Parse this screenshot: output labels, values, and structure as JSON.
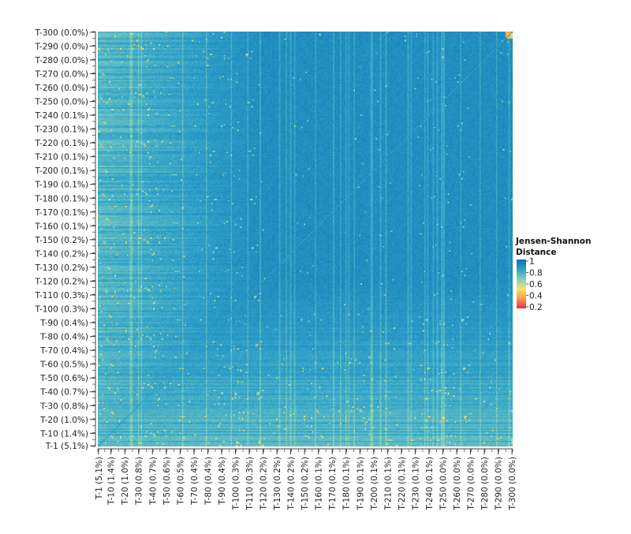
{
  "chart_data": {
    "type": "heatmap",
    "title": "",
    "xlabel": "",
    "ylabel": "",
    "n_topics": 300,
    "labeled_topics": [
      1,
      10,
      20,
      30,
      40,
      50,
      60,
      70,
      80,
      90,
      100,
      110,
      120,
      130,
      140,
      150,
      160,
      170,
      180,
      190,
      200,
      210,
      220,
      230,
      240,
      250,
      260,
      270,
      280,
      290,
      300
    ],
    "y_tick_labels": [
      "T-1 (5.1%)",
      "T-10 (1.4%)",
      "T-20 (1.0%)",
      "T-30 (0.8%)",
      "T-40 (0.7%)",
      "T-50 (0.6%)",
      "T-60 (0.5%)",
      "T-70 (0.4%)",
      "T-80 (0.4%)",
      "T-90 (0.4%)",
      "T-100 (0.3%)",
      "T-110 (0.3%)",
      "T-120 (0.2%)",
      "T-130 (0.2%)",
      "T-140 (0.2%)",
      "T-150 (0.2%)",
      "T-160 (0.1%)",
      "T-170 (0.1%)",
      "T-180 (0.1%)",
      "T-190 (0.1%)",
      "T-200 (0.1%)",
      "T-210 (0.1%)",
      "T-220 (0.1%)",
      "T-230 (0.1%)",
      "T-240 (0.1%)",
      "T-250 (0.0%)",
      "T-260 (0.0%)",
      "T-270 (0.0%)",
      "T-280 (0.0%)",
      "T-290 (0.0%)",
      "T-300 (0.0%)"
    ],
    "x_tick_labels": [
      "T-1 (5.1%)",
      "T-10 (1.4%)",
      "T-20 (1.0%)",
      "T-30 (0.8%)",
      "T-40 (0.7%)",
      "T-50 (0.6%)",
      "T-60 (0.5%)",
      "T-70 (0.4%)",
      "T-80 (0.4%)",
      "T-90 (0.4%)",
      "T-100 (0.3%)",
      "T-110 (0.3%)",
      "T-120 (0.2%)",
      "T-130 (0.2%)",
      "T-140 (0.2%)",
      "T-150 (0.2%)",
      "T-160 (0.1%)",
      "T-170 (0.1%)",
      "T-180 (0.1%)",
      "T-190 (0.1%)",
      "T-200 (0.1%)",
      "T-210 (0.1%)",
      "T-220 (0.1%)",
      "T-230 (0.1%)",
      "T-240 (0.1%)",
      "T-250 (0.0%)",
      "T-260 (0.0%)",
      "T-270 (0.0%)",
      "T-280 (0.0%)",
      "T-290 (0.0%)",
      "T-300 (0.0%)"
    ],
    "value_range": [
      0.2,
      1.0
    ],
    "diagonal_value": 0.85,
    "off_diagonal_typical": 0.9,
    "low_rank_region_typical": 0.75,
    "top_right_block_value": 0.45,
    "colorbar": {
      "title_line1": "Jensen-Shannon",
      "title_line2": "Distance",
      "ticks": [
        "1",
        "0.8",
        "0.6",
        "0.4",
        "0.2"
      ],
      "colors": [
        "#0a6fb0",
        "#2ea0c8",
        "#7fcfbf",
        "#f5e56b",
        "#f79a4a",
        "#e8334a"
      ]
    },
    "legend_placement": "right"
  }
}
